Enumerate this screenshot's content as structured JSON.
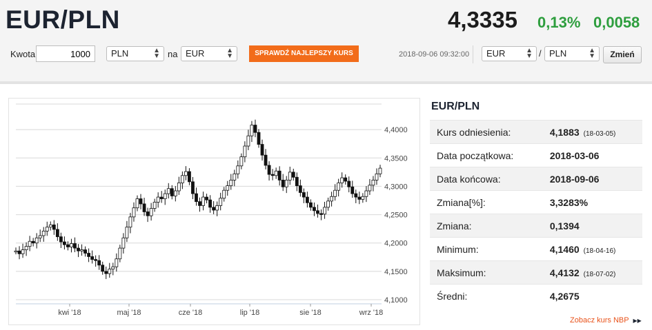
{
  "header": {
    "pair": "EUR/PLN",
    "rate": "4,3335",
    "change_pct": "0,13%",
    "change_abs": "0,0058"
  },
  "converter": {
    "amount_label": "Kwota",
    "amount_value": "1000",
    "from_currency": "PLN",
    "to_label": "na",
    "to_currency": "EUR",
    "best_rate_button": "SPRAWDŹ NAJLEPSZY KURS",
    "timestamp": "2018-09-06 09:32:00",
    "base_currency": "EUR",
    "slash": "/",
    "quote_currency": "PLN",
    "change_button": "Zmień"
  },
  "colors": {
    "accent_orange": "#f26c1a",
    "positive_green": "#2e9e3e",
    "dark_text": "#1c2330"
  },
  "stats": {
    "title": "EUR/PLN",
    "rows": [
      {
        "label": "Kurs odniesienia:",
        "value": "4,1883",
        "note": "(18-03-05)"
      },
      {
        "label": "Data początkowa:",
        "value": "2018-03-06",
        "note": ""
      },
      {
        "label": "Data końcowa:",
        "value": "2018-09-06",
        "note": ""
      },
      {
        "label": "Zmiana[%]:",
        "value": "3,3283%",
        "note": ""
      },
      {
        "label": "Zmiana:",
        "value": "0,1394",
        "note": ""
      },
      {
        "label": "Minimum:",
        "value": "4,1460",
        "note": "(18-04-16)"
      },
      {
        "label": "Maksimum:",
        "value": "4,4132",
        "note": "(18-07-02)"
      },
      {
        "label": "Średni:",
        "value": "4,2675",
        "note": ""
      }
    ],
    "nbp_link": "Zobacz kurs NBP",
    "nbp_icon": "double-chevron-right-icon"
  },
  "chart_data": {
    "type": "candlestick",
    "x_tick_labels": [
      "kwi '18",
      "maj '18",
      "cze '18",
      "lip '18",
      "sie '18",
      "wrz '18"
    ],
    "y_tick_labels": [
      "4,1000",
      "4,1500",
      "4,2000",
      "4,2500",
      "4,3000",
      "4,3500",
      "4,4000"
    ],
    "y_ticks": [
      4.1,
      4.15,
      4.2,
      4.25,
      4.3,
      4.35,
      4.4
    ],
    "ylim": [
      4.1,
      4.45
    ],
    "grid": true,
    "period": [
      "2018-03-06",
      "2018-09-06"
    ],
    "close_series": [
      4.186,
      4.181,
      4.188,
      4.194,
      4.203,
      4.2,
      4.209,
      4.213,
      4.221,
      4.228,
      4.232,
      4.224,
      4.211,
      4.202,
      4.197,
      4.193,
      4.199,
      4.191,
      4.186,
      4.188,
      4.182,
      4.176,
      4.171,
      4.169,
      4.161,
      4.15,
      4.146,
      4.154,
      4.158,
      4.172,
      4.191,
      4.209,
      4.228,
      4.246,
      4.262,
      4.278,
      4.269,
      4.255,
      4.248,
      4.261,
      4.272,
      4.281,
      4.278,
      4.287,
      4.296,
      4.283,
      4.292,
      4.306,
      4.319,
      4.326,
      4.308,
      4.287,
      4.273,
      4.266,
      4.281,
      4.276,
      4.263,
      4.258,
      4.266,
      4.279,
      4.293,
      4.301,
      4.311,
      4.322,
      4.336,
      4.352,
      4.371,
      4.389,
      4.408,
      4.395,
      4.374,
      4.355,
      4.337,
      4.321,
      4.319,
      4.327,
      4.311,
      4.299,
      4.311,
      4.325,
      4.316,
      4.301,
      4.289,
      4.281,
      4.271,
      4.263,
      4.257,
      4.252,
      4.251,
      4.263,
      4.274,
      4.282,
      4.293,
      4.306,
      4.315,
      4.309,
      4.299,
      4.287,
      4.281,
      4.277,
      4.282,
      4.292,
      4.302,
      4.311,
      4.322,
      4.332
    ]
  }
}
